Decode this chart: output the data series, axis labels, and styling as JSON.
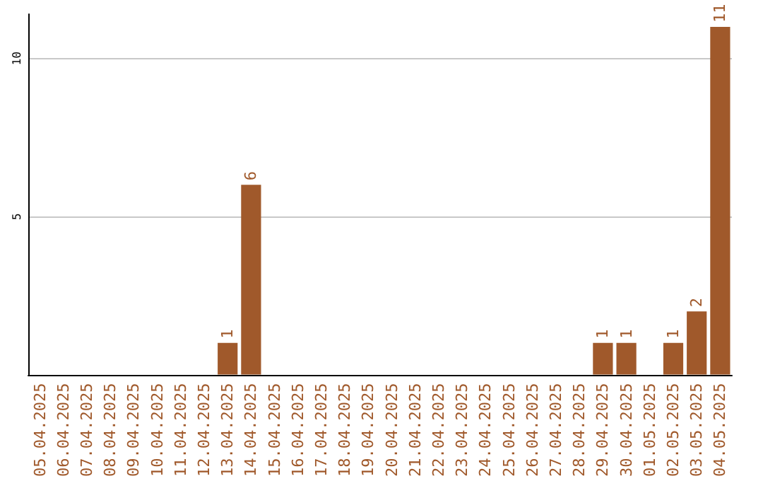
{
  "chart_data": {
    "type": "bar",
    "categories": [
      "05.04.2025",
      "06.04.2025",
      "07.04.2025",
      "08.04.2025",
      "09.04.2025",
      "10.04.2025",
      "11.04.2025",
      "12.04.2025",
      "13.04.2025",
      "14.04.2025",
      "15.04.2025",
      "16.04.2025",
      "17.04.2025",
      "18.04.2025",
      "19.04.2025",
      "20.04.2025",
      "21.04.2025",
      "22.04.2025",
      "23.04.2025",
      "24.04.2025",
      "25.04.2025",
      "26.04.2025",
      "27.04.2025",
      "28.04.2025",
      "29.04.2025",
      "30.04.2025",
      "01.05.2025",
      "02.05.2025",
      "03.05.2025",
      "04.05.2025"
    ],
    "values": [
      0,
      0,
      0,
      0,
      0,
      0,
      0,
      0,
      1,
      6,
      0,
      0,
      0,
      0,
      0,
      0,
      0,
      0,
      0,
      0,
      0,
      0,
      0,
      0,
      1,
      1,
      0,
      1,
      2,
      11
    ],
    "value_labels": [
      null,
      null,
      null,
      null,
      null,
      null,
      null,
      null,
      "1",
      "6",
      null,
      null,
      null,
      null,
      null,
      null,
      null,
      null,
      null,
      null,
      null,
      null,
      null,
      null,
      "1",
      "1",
      null,
      "1",
      "2",
      "11"
    ],
    "color": "#a0592b",
    "ylim": [
      0,
      11.4
    ],
    "yticks": [
      5,
      10
    ],
    "grid": "y"
  }
}
